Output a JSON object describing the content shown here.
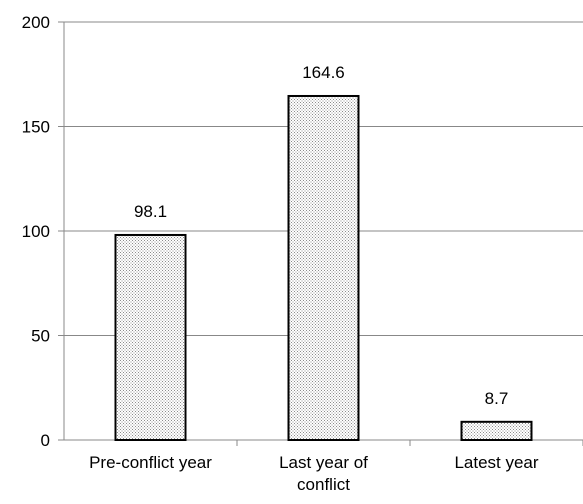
{
  "chart_data": {
    "type": "bar",
    "categories": [
      "Pre-conflict year",
      "Last year of conflict",
      "Latest year"
    ],
    "category_label_lines": [
      [
        "Pre-conflict year"
      ],
      [
        "Last year of",
        "conflict"
      ],
      [
        "Latest year"
      ]
    ],
    "values": [
      98.1,
      164.6,
      8.7
    ],
    "data_labels": [
      "98.1",
      "164.6",
      "8.7"
    ],
    "title": "",
    "xlabel": "",
    "ylabel": "",
    "ylim": [
      0,
      200
    ],
    "yticks": [
      0,
      50,
      100,
      150,
      200
    ],
    "ytick_labels": [
      "0",
      "50",
      "100",
      "150",
      "200"
    ],
    "grid": true,
    "legend": "none",
    "colors": {
      "bar_fill": "#e6e6e6",
      "bar_stroke": "#000000",
      "axis": "#888888",
      "grid": "#888888",
      "text": "#000000"
    }
  }
}
